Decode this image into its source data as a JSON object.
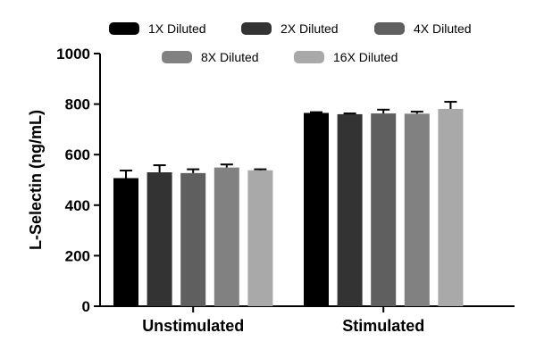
{
  "chart_data": {
    "type": "bar",
    "categories": [
      "Unstimulated",
      "Stimulated"
    ],
    "series": [
      {
        "name": "1X Diluted",
        "values": [
          507,
          765
        ],
        "errors": [
          30,
          3
        ],
        "color": "#000000"
      },
      {
        "name": "2X Diluted",
        "values": [
          530,
          760
        ],
        "errors": [
          28,
          3
        ],
        "color": "#333333"
      },
      {
        "name": "4X Diluted",
        "values": [
          527,
          763
        ],
        "errors": [
          15,
          15
        ],
        "color": "#5f5f5f"
      },
      {
        "name": "8X Diluted",
        "values": [
          549,
          762
        ],
        "errors": [
          12,
          8
        ],
        "color": "#818181"
      },
      {
        "name": "16X Diluted",
        "values": [
          538,
          781
        ],
        "errors": [
          4,
          28
        ],
        "color": "#a9a9a9"
      }
    ],
    "title": "",
    "xlabel": "",
    "ylabel": "L-Selectin (ng/mL)",
    "ylim": [
      0,
      1000
    ],
    "yticks": [
      0,
      200,
      400,
      600,
      800,
      1000
    ],
    "legend": "top",
    "grid": false
  }
}
